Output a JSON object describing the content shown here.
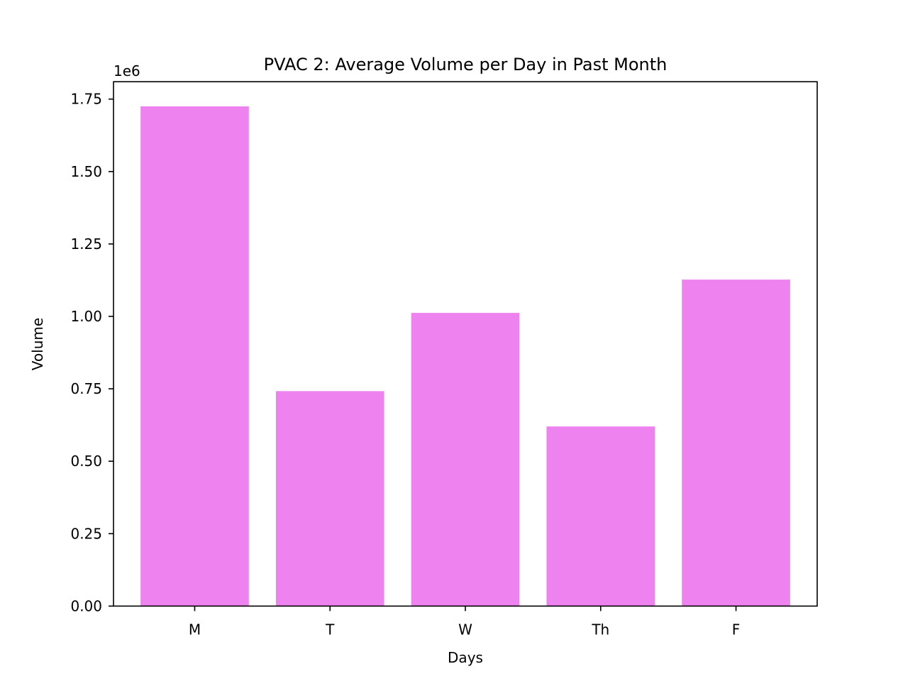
{
  "chart_data": {
    "type": "bar",
    "title": "PVAC 2: Average Volume per Day in Past Month",
    "xlabel": "Days",
    "ylabel": "Volume",
    "y_multiplier_label": "1e6",
    "categories": [
      "M",
      "T",
      "W",
      "Th",
      "F"
    ],
    "values": [
      1725000,
      742000,
      1012000,
      620000,
      1127000
    ],
    "ylim": [
      0,
      1810000
    ],
    "yticks": [
      0,
      250000,
      500000,
      750000,
      1000000,
      1250000,
      1500000,
      1750000
    ],
    "ytick_labels": [
      "0.00",
      "0.25",
      "0.50",
      "0.75",
      "1.00",
      "1.25",
      "1.50",
      "1.75"
    ],
    "grid": false,
    "bar_color": "#ee82ee"
  }
}
